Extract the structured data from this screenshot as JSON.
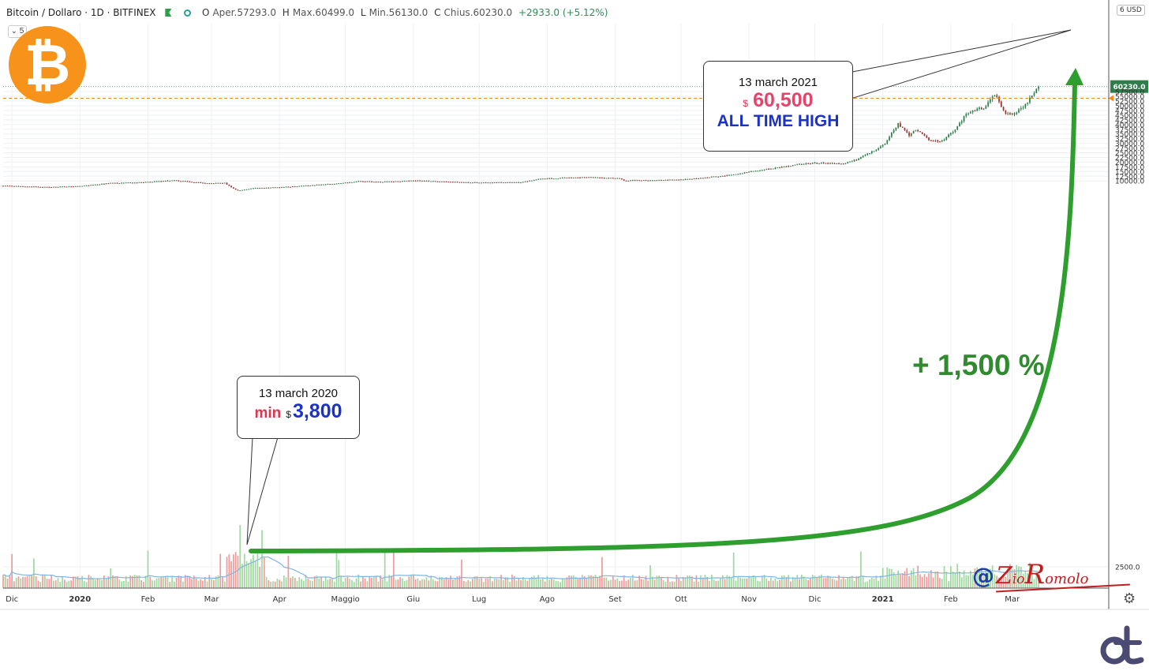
{
  "header": {
    "symbol": "Bitcoin / Dollaro · 1D · BITFINEX",
    "o_label": "O",
    "open": "Aper.57293.0",
    "h_label": "H",
    "high": "Max.60499.0",
    "l_label": "L",
    "low": "Min.56130.0",
    "c_label": "C",
    "close": "Chius.60230.0",
    "change": "+2933.0 (+5.12%)"
  },
  "collapse_btn": "⌄ 5",
  "currency_badge": "6 USD",
  "logo_icon": "bitcoin-logo-icon",
  "logo_glyph": "₿",
  "annotations": {
    "low": {
      "date": "13 march 2020",
      "label": "min",
      "currency": "$",
      "value": "3,800"
    },
    "high": {
      "date": "13 march 2021",
      "currency": "$",
      "value": "60,500",
      "label": "ALL TIME HIGH"
    },
    "gain": "+ 1,500 %",
    "signature_at": "@",
    "signature_parts": [
      "Z",
      "io",
      "R",
      "omolo"
    ]
  },
  "colors": {
    "up": "#26a69a",
    "down": "#ef5350",
    "candle_up": "#2f7d4a",
    "candle_down": "#a12c2c",
    "volume_up": "#8fd18f",
    "volume_down": "#f08a8a",
    "volume_ma": "#7fb5e0",
    "arrow": "#2e9e2e",
    "price_tag": "#2f7d4a",
    "level_line": "#f5891f",
    "brand_orange": "#f7931a"
  },
  "chart_data": {
    "type": "candlestick",
    "title": "Bitcoin / Dollaro · 1D · BITFINEX",
    "y_ticks": [
      2500,
      10000,
      12500,
      15000,
      17500,
      20000,
      22500,
      25000,
      27500,
      30000,
      32500,
      35000,
      37500,
      40000,
      42500,
      45000,
      47500,
      50000,
      52500,
      55000,
      57500
    ],
    "y_tick_labels": [
      "2500.0",
      "10000.0",
      "12500.0",
      "15000.0",
      "17500.0",
      "20000.0",
      "22500.0",
      "25000.0",
      "27500.0",
      "30000.0",
      "32500.0",
      "35000.0",
      "37500.0",
      "40000.0",
      "42500.0",
      "45000.0",
      "47500.0",
      "50000.0",
      "52500.0",
      "55000.0",
      "57500.0"
    ],
    "x_labels": [
      "Dic",
      "2020",
      "Feb",
      "Mar",
      "Apr",
      "Maggio",
      "Giu",
      "Lug",
      "Ago",
      "Set",
      "Ott",
      "Nov",
      "Dic",
      "2021",
      "Feb",
      "Mar"
    ],
    "x_label_dates": [
      "2019-12-01",
      "2020-01-01",
      "2020-02-01",
      "2020-03-01",
      "2020-04-01",
      "2020-05-01",
      "2020-06-01",
      "2020-07-01",
      "2020-08-01",
      "2020-09-01",
      "2020-10-01",
      "2020-11-01",
      "2020-12-01",
      "2021-01-01",
      "2021-02-01",
      "2021-03-01"
    ],
    "x_range": [
      "2019-11-27",
      "2021-04-14"
    ],
    "last_price": "60230.0",
    "last_price_value": 60230,
    "level_line": 54000,
    "close_keypoints": [
      [
        "2019-11-27",
        7400
      ],
      [
        "2019-12-17",
        6700
      ],
      [
        "2020-01-01",
        7200
      ],
      [
        "2020-01-14",
        8800
      ],
      [
        "2020-02-01",
        9400
      ],
      [
        "2020-02-13",
        10300
      ],
      [
        "2020-02-29",
        8600
      ],
      [
        "2020-03-07",
        9000
      ],
      [
        "2020-03-13",
        4900
      ],
      [
        "2020-03-20",
        6200
      ],
      [
        "2020-04-01",
        6600
      ],
      [
        "2020-04-29",
        8800
      ],
      [
        "2020-05-08",
        9900
      ],
      [
        "2020-05-16",
        9400
      ],
      [
        "2020-06-01",
        10150
      ],
      [
        "2020-06-28",
        9100
      ],
      [
        "2020-07-20",
        9200
      ],
      [
        "2020-07-28",
        11000
      ],
      [
        "2020-08-17",
        12000
      ],
      [
        "2020-09-03",
        11300
      ],
      [
        "2020-09-05",
        10200
      ],
      [
        "2020-10-01",
        10600
      ],
      [
        "2020-10-21",
        12800
      ],
      [
        "2020-11-05",
        15500
      ],
      [
        "2020-11-24",
        19000
      ],
      [
        "2020-11-30",
        19600
      ],
      [
        "2020-12-15",
        19300
      ],
      [
        "2020-12-24",
        23500
      ],
      [
        "2021-01-01",
        29000
      ],
      [
        "2021-01-08",
        40500
      ],
      [
        "2021-01-13",
        34000
      ],
      [
        "2021-01-16",
        37500
      ],
      [
        "2021-01-22",
        32000
      ],
      [
        "2021-01-27",
        30500
      ],
      [
        "2021-02-03",
        37500
      ],
      [
        "2021-02-08",
        46000
      ],
      [
        "2021-02-16",
        49000
      ],
      [
        "2021-02-21",
        56500
      ],
      [
        "2021-02-26",
        46000
      ],
      [
        "2021-02-28",
        45000
      ],
      [
        "2021-03-05",
        48500
      ],
      [
        "2021-03-09",
        54000
      ],
      [
        "2021-03-13",
        60230
      ]
    ]
  }
}
